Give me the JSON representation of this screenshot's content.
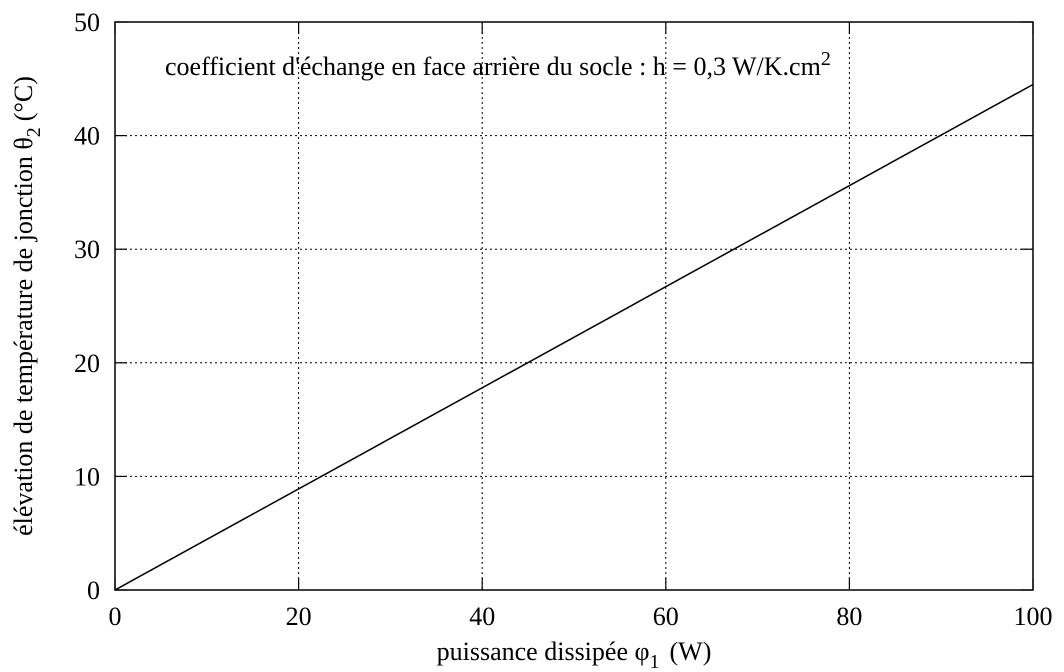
{
  "chart_data": {
    "type": "line",
    "annotation": {
      "text": "coefficient d'échange en face arrière du socle : h = 0,3 W/K.cm",
      "sup": "2"
    },
    "xlabel": {
      "text": "puissance dissipée φ",
      "sub": "1",
      "unit": "(W)"
    },
    "ylabel": {
      "text": "élévation de température de jonction θ",
      "sub": "2",
      "unit": "(°C)"
    },
    "x": [
      0,
      100
    ],
    "series": [
      {
        "color": "#000000",
        "values": [
          0,
          44.5
        ]
      }
    ],
    "xlim": [
      0,
      100
    ],
    "xticks": [
      0,
      20,
      40,
      60,
      80,
      100
    ],
    "ylim": [
      0,
      50
    ],
    "yticks": [
      0,
      10,
      20,
      30,
      40,
      50
    ],
    "grid": true
  }
}
